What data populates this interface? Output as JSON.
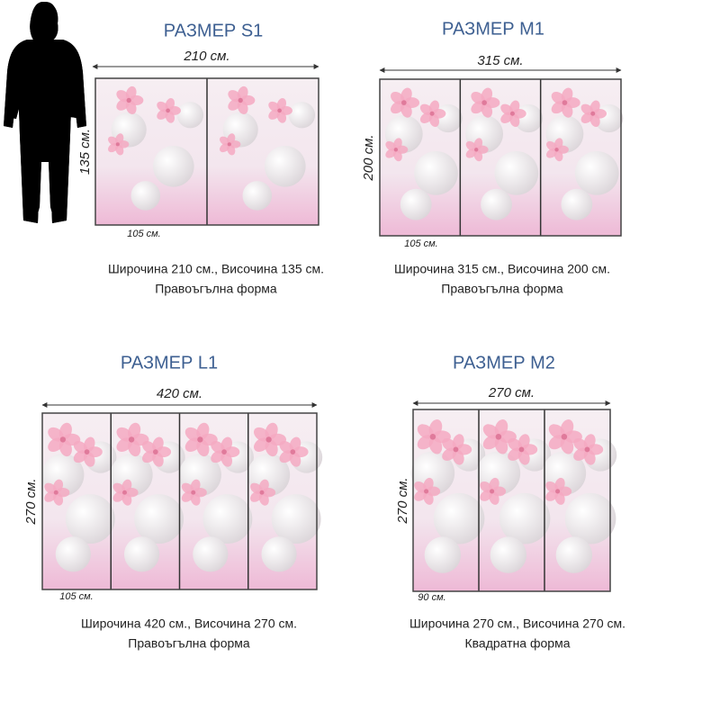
{
  "panels": [
    {
      "title": "РАЗМЕР S1",
      "width": "210 см.",
      "height": "135 см.",
      "panel_width": "105 см.",
      "description": "Широчина 210 см., Височина 135 см.",
      "shape": "Правоъгълна форма"
    },
    {
      "title": "РАЗМЕР M1",
      "width": "315 см.",
      "height": "200 см.",
      "panel_width": "105 см.",
      "description": "Широчина 315 см., Височина 200 см.",
      "shape": "Правоъгълна форма"
    },
    {
      "title": "РАЗМЕР L1",
      "width": "420 см.",
      "height": "270 см.",
      "panel_width": "105 см.",
      "description": "Широчина 420 см., Височина 270 см.",
      "shape": "Правоъгълна форма"
    },
    {
      "title": "РАЗМЕР M2",
      "width": "270 см.",
      "height": "270 см.",
      "panel_width": "90 см.",
      "description": "Широчина 270 см., Височина 270 см.",
      "shape": "Квадратна форма"
    }
  ]
}
